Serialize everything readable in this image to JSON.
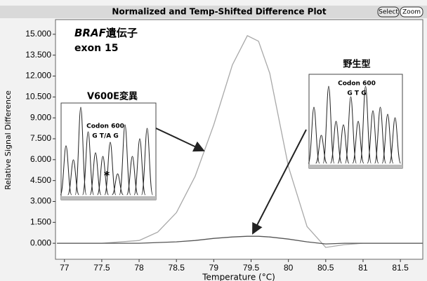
{
  "chart_data": {
    "type": "line",
    "title": "Normalized and Temp-Shifted Difference Plot",
    "x_label": "Temperature (°C)",
    "y_label": "Relative Signal Difference",
    "buttons": [
      "Select",
      "Zoom"
    ],
    "x": [
      76.9,
      77,
      77.5,
      78,
      78.25,
      78.5,
      78.75,
      79,
      79.25,
      79.45,
      79.6,
      79.75,
      80,
      80.25,
      80.5,
      80.75,
      81,
      81.5,
      81.8
    ],
    "series": [
      {
        "color": "#a8a8a8",
        "values": [
          0,
          0,
          0,
          0.2,
          0.8,
          2.2,
          4.8,
          8.5,
          12.8,
          14.9,
          14.5,
          12.2,
          5.5,
          1.2,
          -0.3,
          -0.1,
          0,
          0,
          0
        ]
      },
      {
        "color": "#555555",
        "values": [
          0,
          0,
          0,
          0,
          0.05,
          0.1,
          0.2,
          0.35,
          0.45,
          0.5,
          0.5,
          0.45,
          0.3,
          0.1,
          -0.05,
          0,
          0,
          0,
          0
        ]
      }
    ],
    "xlim": [
      76.88,
      81.8
    ],
    "ylim": [
      -1.15,
      16.05
    ],
    "xticks": [
      77,
      77.5,
      78,
      78.5,
      79,
      79.5,
      80,
      80.5,
      81,
      81.5
    ],
    "yticks": [
      {
        "value": 0,
        "label": "0.000"
      },
      {
        "value": 1.5,
        "label": "1.500"
      },
      {
        "value": 3,
        "label": "3.000"
      },
      {
        "value": 4.5,
        "label": "4.500"
      },
      {
        "value": 6,
        "label": "6.000"
      },
      {
        "value": 7.5,
        "label": "7.500"
      },
      {
        "value": 9,
        "label": "9.000"
      },
      {
        "value": 10.5,
        "label": "10.500"
      },
      {
        "value": 12,
        "label": "12.000"
      },
      {
        "value": 13.5,
        "label": "13.500"
      },
      {
        "value": 15,
        "label": "15.000"
      }
    ],
    "annotations": {
      "gene_name": "BRAF",
      "gene_word": "遺伝子",
      "exon": "exon 15",
      "mutant_label": "V600E変異",
      "mutant_codon": "Codon 600",
      "mutant_bases": "G T/A G",
      "mutant_marker": "*",
      "wildtype_label": "野生型",
      "wildtype_codon": "Codon 600",
      "wildtype_bases": "G T G"
    }
  }
}
